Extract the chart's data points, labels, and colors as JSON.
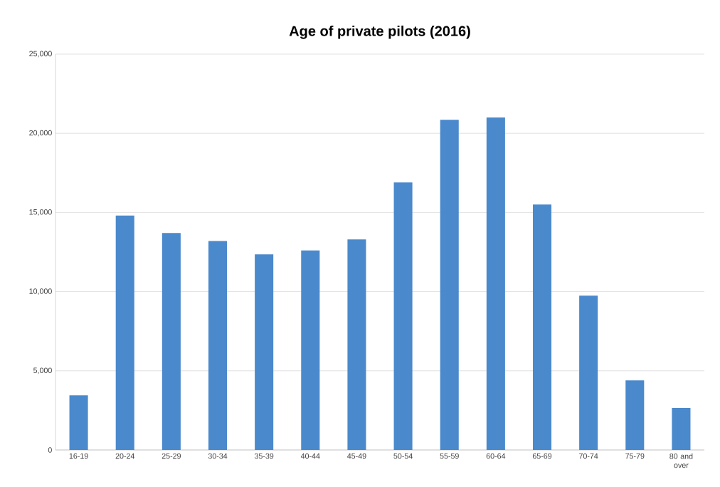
{
  "chart_data": {
    "type": "bar",
    "title": "Age of private pilots (2016)",
    "categories": [
      "16-19",
      "20-24",
      "25-29",
      "30-34",
      "35-39",
      "40-44",
      "45-49",
      "50-54",
      "55-59",
      "60-64",
      "65-69",
      "70-74",
      "75-79",
      "80 and over"
    ],
    "values": [
      3450,
      14800,
      13700,
      13200,
      12350,
      12600,
      13300,
      16900,
      20850,
      21000,
      15500,
      9750,
      4400,
      2650
    ],
    "color": "#4a89cc",
    "ylim": [
      0,
      25000
    ],
    "yticks": [
      0,
      {
        "value": 5000,
        "label": "5,000"
      },
      {
        "value": 10000,
        "label": "10,000"
      },
      {
        "value": 15000,
        "label": "15,000"
      },
      {
        "value": 20000,
        "label": "20,000"
      },
      {
        "value": 25000,
        "label": "25,000"
      }
    ],
    "grid": "y"
  }
}
